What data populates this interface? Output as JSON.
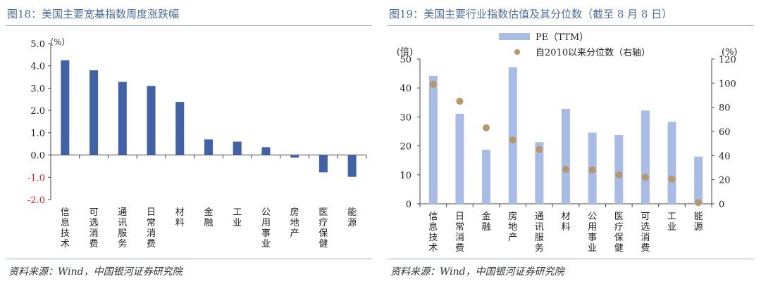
{
  "left_chart": {
    "title": "图18：美国主要宽基指数周度涨跌幅",
    "source": "资料来源：Wind，中国银河证券研究院",
    "unit": "（%）",
    "colors": {
      "bar": "#4262a8",
      "negative_tick": "#e02020",
      "axis": "#444444",
      "title": "#4a6ea4"
    }
  },
  "right_chart": {
    "title": "图19：美国主要行业指数估值及其分位数（截至 8 月 8 日）",
    "source": "资料来源：Wind，中国银河证券研究院",
    "left_unit": "(倍)",
    "right_unit": "(%)",
    "colors": {
      "bar": "#a9bce6",
      "dot": "#b8976a",
      "axis": "#444444",
      "title": "#4a6ea4"
    }
  },
  "chart_data": [
    {
      "type": "bar",
      "title": "图18：美国主要宽基指数周度涨跌幅",
      "ylabel": "（%）",
      "ylim": [
        -2.0,
        5.0
      ],
      "yticks": [
        "5.0",
        "4.0",
        "3.0",
        "2.0",
        "1.0",
        "0.0",
        "-1.0",
        "-2.0"
      ],
      "categories": [
        "信息技术",
        "可选消费",
        "通讯服务",
        "日常消费",
        "材料",
        "金融",
        "工业",
        "公用事业",
        "房地产",
        "医疗保健",
        "能源"
      ],
      "values": [
        4.25,
        3.8,
        3.28,
        3.1,
        2.38,
        0.7,
        0.6,
        0.35,
        -0.12,
        -0.78,
        -0.98
      ],
      "grid": false,
      "legend": "none"
    },
    {
      "type": "bar",
      "title": "图19：美国主要行业指数估值及其分位数（截至 8 月 8 日）",
      "categories": [
        "信息技术",
        "日常消费",
        "金融",
        "房地产",
        "通讯服务",
        "材料",
        "公用事业",
        "医疗保健",
        "可选消费",
        "工业",
        "能源"
      ],
      "series": [
        {
          "name": "PE（TTM）",
          "type": "bar",
          "axis": "left",
          "values": [
            44.2,
            31.1,
            18.7,
            47.2,
            21.3,
            32.8,
            24.6,
            23.8,
            32.2,
            28.3,
            16.3
          ]
        },
        {
          "name": "自2010以来分位数（右轴）",
          "type": "scatter",
          "axis": "right",
          "values": [
            99,
            85,
            63,
            53,
            45,
            28.5,
            28,
            24,
            22,
            20.5,
            1
          ]
        }
      ],
      "ylabel_left": "(倍)",
      "ylabel_right": "(%)",
      "ylim_left": [
        0,
        50
      ],
      "ylim_right": [
        0,
        120
      ],
      "yticks_left": [
        "50",
        "40",
        "30",
        "20",
        "10",
        "0"
      ],
      "yticks_right": [
        "120",
        "100",
        "80",
        "60",
        "40",
        "20",
        "0"
      ],
      "grid": false,
      "legend": "top-center"
    }
  ]
}
